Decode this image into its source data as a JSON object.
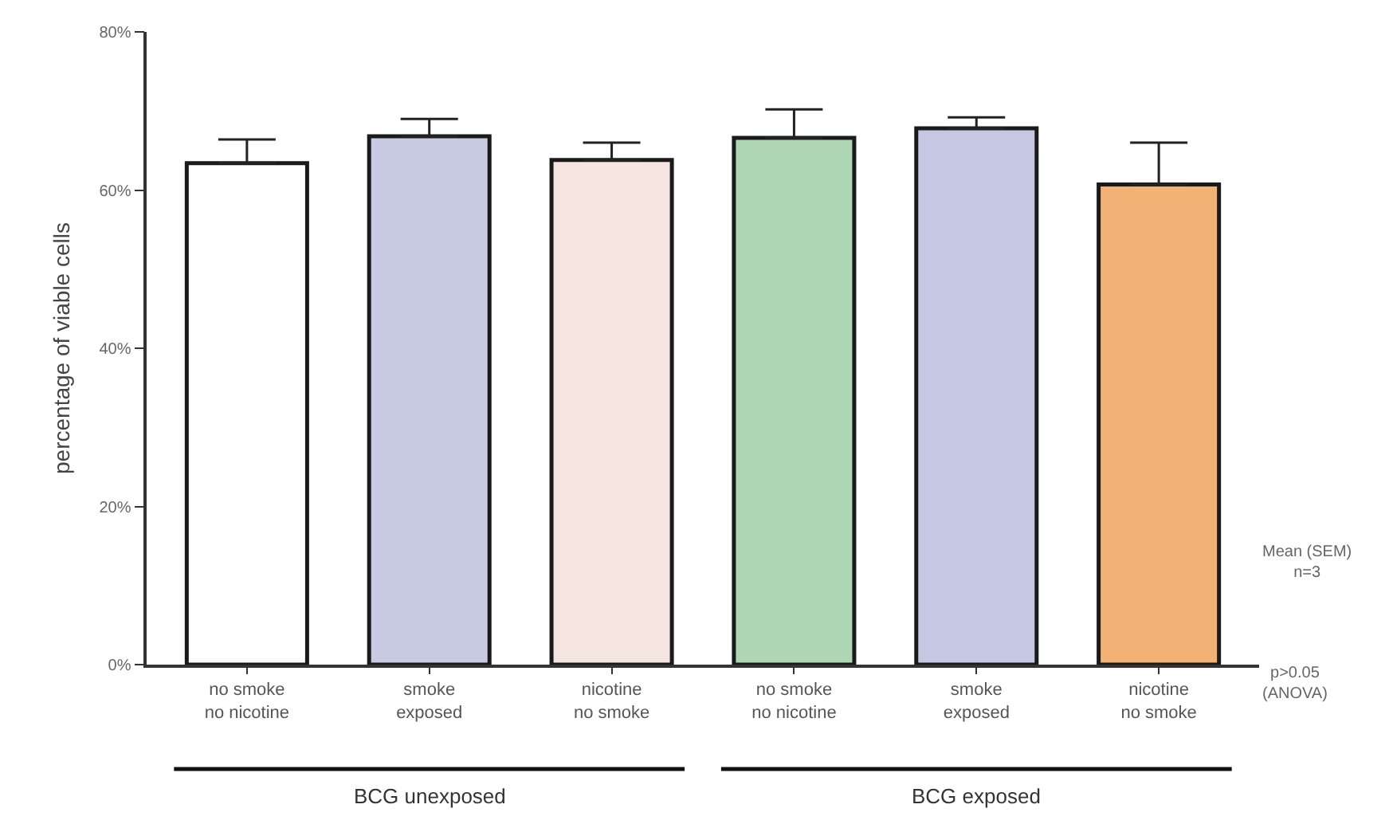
{
  "chart_data": {
    "type": "bar",
    "ylabel": "percentage of viable cells",
    "categories": [
      "no smoke\nno nicotine",
      "smoke\nexposed",
      "nicotine\nno smoke",
      "no smoke\nno nicotine",
      "smoke\nexposed",
      "nicotine\nno smoke"
    ],
    "values": [
      63.4,
      66.8,
      63.8,
      66.6,
      67.8,
      60.7
    ],
    "colors": [
      "#ffffff",
      "#c9cae4",
      "#f5e6e2",
      "#aed6b4",
      "#c6c7e3",
      "#f2b275"
    ],
    "errors": [
      [
        63.4,
        66.4
      ],
      [
        66.8,
        69.0
      ],
      [
        63.8,
        66.0
      ],
      [
        66.6,
        70.2
      ],
      [
        67.8,
        69.2
      ],
      [
        60.7,
        66.0
      ]
    ],
    "ylim": [
      0,
      80
    ],
    "yticks": [
      {
        "value": 0,
        "label": "0%"
      },
      {
        "value": 20,
        "label": "20%"
      },
      {
        "value": 40,
        "label": "40%"
      },
      {
        "value": 60,
        "label": "60%"
      },
      {
        "value": 80,
        "label": "80%"
      }
    ],
    "annotations": [
      "BCG unexposed",
      "BCG exposed",
      "Mean (SEM)\nn=3",
      "p>0.05\n(ANOVA)"
    ]
  }
}
